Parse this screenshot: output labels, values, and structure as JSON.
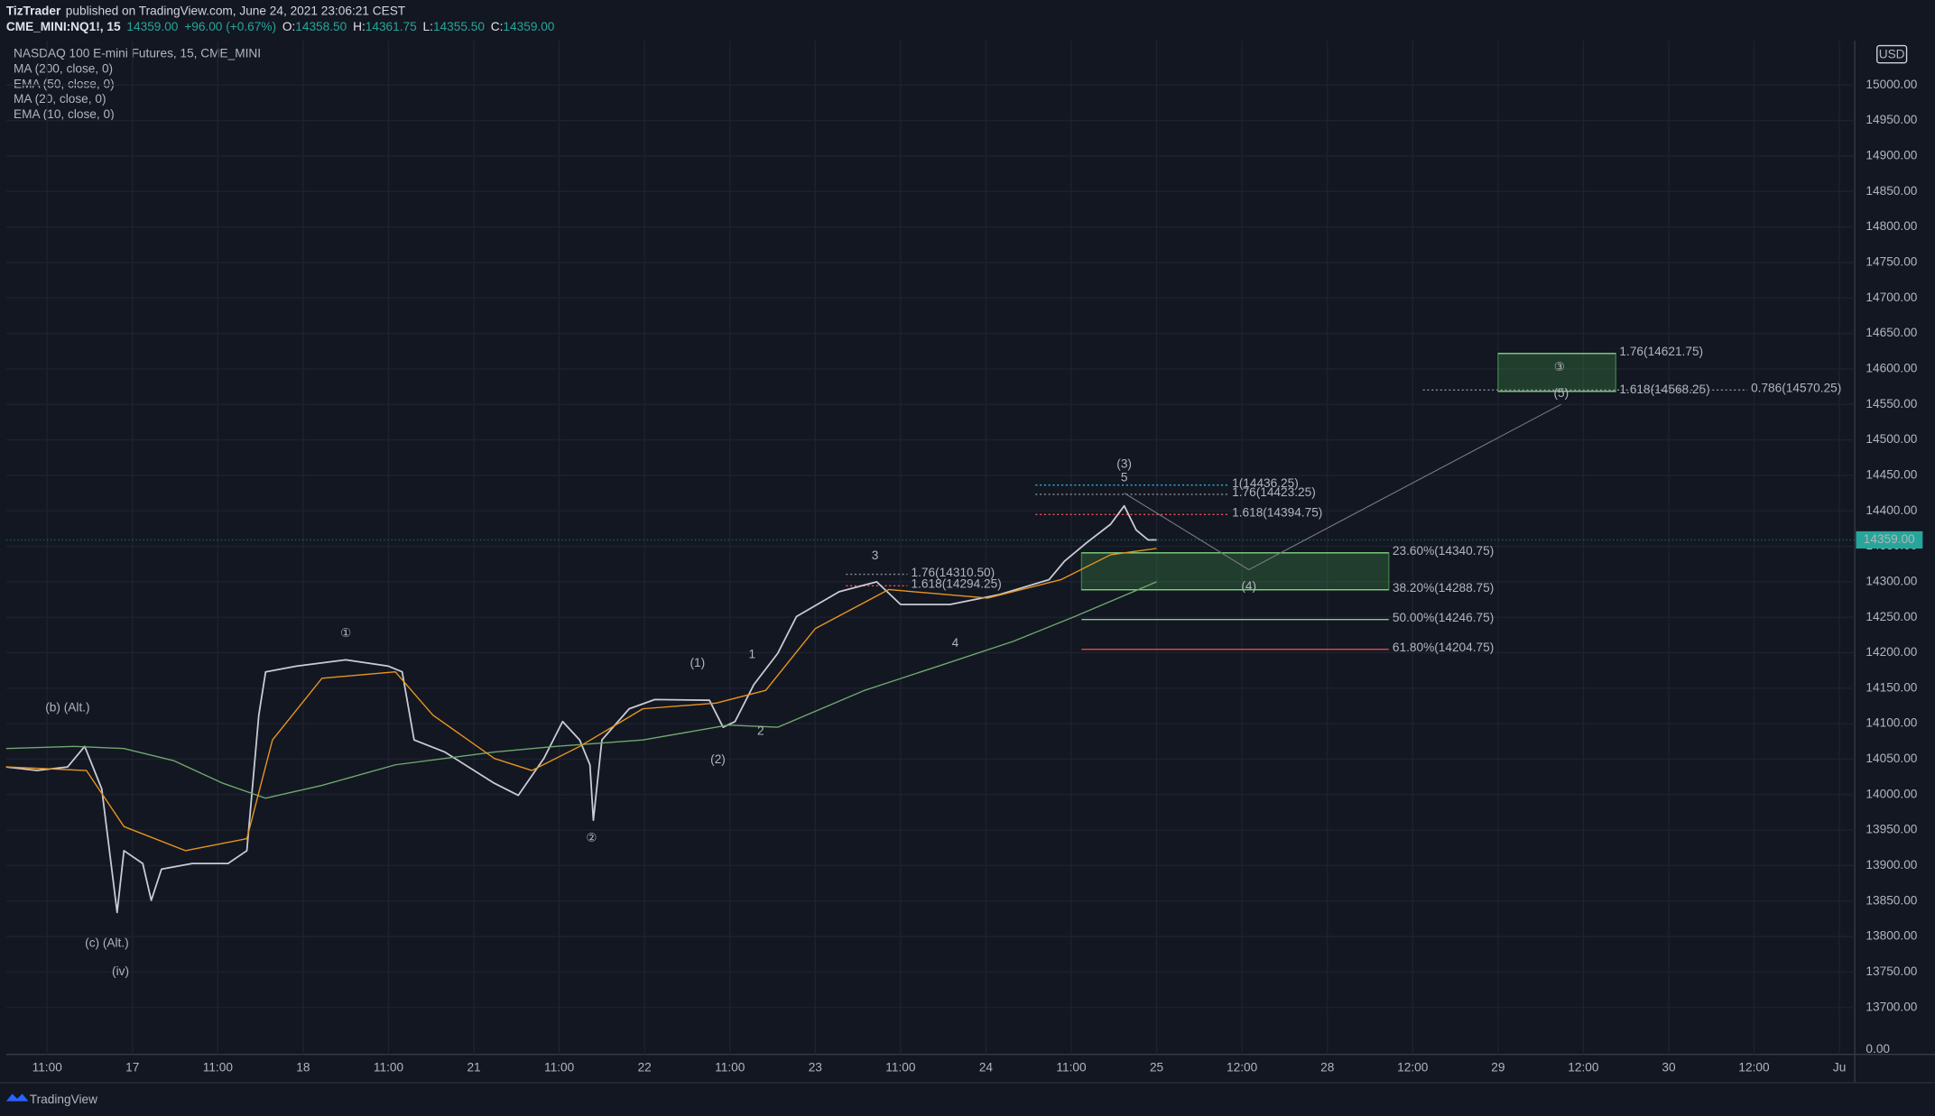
{
  "header": {
    "author": "TizTrader",
    "published": "published on TradingView.com, June 24, 2021 23:06:21 CEST",
    "symbol": "CME_MINI:NQ1!, 15",
    "price": "14359.00",
    "change": "+96.00 (+0.67%)",
    "ohlc": [
      {
        "key": "O:",
        "value": "14358.50"
      },
      {
        "key": "H:",
        "value": "14361.75"
      },
      {
        "key": "L:",
        "value": "14355.50"
      },
      {
        "key": "C:",
        "value": "14359.00"
      }
    ]
  },
  "footer": {
    "brand": "TradingView"
  },
  "chart_data": {
    "type": "line",
    "currency": "USD",
    "price_scale_bottom_label": "0.00",
    "other_indicators": [
      "MA (20, close, 0)",
      "EMA (10, close, 0)"
    ],
    "xlim": [
      0.26,
      11.09
    ],
    "ylim": [
      13634,
      15062.5
    ],
    "grid": true,
    "xticks": [
      {
        "value": 0.5,
        "label": "11:00"
      },
      {
        "value": 1,
        "label": "17"
      },
      {
        "value": 1.5,
        "label": "11:00"
      },
      {
        "value": 2,
        "label": "18"
      },
      {
        "value": 2.5,
        "label": "11:00"
      },
      {
        "value": 3,
        "label": "21"
      },
      {
        "value": 3.5,
        "label": "11:00"
      },
      {
        "value": 4,
        "label": "22"
      },
      {
        "value": 4.5,
        "label": "11:00"
      },
      {
        "value": 5,
        "label": "23"
      },
      {
        "value": 5.5,
        "label": "11:00"
      },
      {
        "value": 6,
        "label": "24"
      },
      {
        "value": 6.5,
        "label": "11:00"
      },
      {
        "value": 7,
        "label": "25"
      },
      {
        "value": 7.5,
        "label": "12:00"
      },
      {
        "value": 8,
        "label": "28"
      },
      {
        "value": 8.5,
        "label": "12:00"
      },
      {
        "value": 9,
        "label": "29"
      },
      {
        "value": 9.5,
        "label": "12:00"
      },
      {
        "value": 10,
        "label": "30"
      },
      {
        "value": 10.5,
        "label": "12:00"
      },
      {
        "value": 11,
        "label": "Ju"
      }
    ],
    "yticks": [
      {
        "value": 13700,
        "label": "13700.00"
      },
      {
        "value": 13750,
        "label": "13750.00"
      },
      {
        "value": 13800,
        "label": "13800.00"
      },
      {
        "value": 13850,
        "label": "13850.00"
      },
      {
        "value": 13900,
        "label": "13900.00"
      },
      {
        "value": 13950,
        "label": "13950.00"
      },
      {
        "value": 14000,
        "label": "14000.00"
      },
      {
        "value": 14050,
        "label": "14050.00"
      },
      {
        "value": 14100,
        "label": "14100.00"
      },
      {
        "value": 14150,
        "label": "14150.00"
      },
      {
        "value": 14200,
        "label": "14200.00"
      },
      {
        "value": 14250,
        "label": "14250.00"
      },
      {
        "value": 14300,
        "label": "14300.00"
      },
      {
        "value": 14350,
        "label": "14350.00"
      },
      {
        "value": 14400,
        "label": "14400.00"
      },
      {
        "value": 14450,
        "label": "14450.00"
      },
      {
        "value": 14500,
        "label": "14500.00"
      },
      {
        "value": 14550,
        "label": "14550.00"
      },
      {
        "value": 14600,
        "label": "14600.00"
      },
      {
        "value": 14650,
        "label": "14650.00"
      },
      {
        "value": 14700,
        "label": "14700.00"
      },
      {
        "value": 14750,
        "label": "14750.00"
      },
      {
        "value": 14800,
        "label": "14800.00"
      },
      {
        "value": 14850,
        "label": "14850.00"
      },
      {
        "value": 14900,
        "label": "14900.00"
      },
      {
        "value": 14950,
        "label": "14950.00"
      },
      {
        "value": 15000,
        "label": "15000.00"
      }
    ],
    "series": [
      {
        "name": "NASDAQ 100 E-mini Futures, 15, CME_MINI",
        "color": "#c9ccd4",
        "x": [
          0.26,
          0.44,
          0.62,
          0.72,
          0.82,
          0.91,
          0.95,
          1.06,
          1.11,
          1.17,
          1.35,
          1.56,
          1.67,
          1.74,
          1.78,
          1.96,
          2.25,
          2.5,
          2.58,
          2.65,
          2.83,
          3.12,
          3.26,
          3.41,
          3.52,
          3.62,
          3.68,
          3.7,
          3.75,
          3.91,
          4.06,
          4.38,
          4.46,
          4.53,
          4.64,
          4.78,
          4.89,
          5.14,
          5.36,
          5.5,
          5.79,
          6.08,
          6.37,
          6.46,
          6.59,
          6.73,
          6.81,
          6.88,
          6.95,
          7.0
        ],
        "values": [
          14039,
          14034,
          14039,
          14068,
          14008,
          13834,
          13921,
          13903,
          13851,
          13895,
          13903,
          13903,
          13921,
          14112,
          14173,
          14181,
          14190,
          14181,
          14173,
          14077,
          14060,
          14016,
          13999,
          14051,
          14103,
          14077,
          14042,
          13964,
          14077,
          14121,
          14134,
          14133,
          14095,
          14103,
          14155,
          14199,
          14251,
          14286,
          14300,
          14268,
          14268,
          14282,
          14303,
          14329,
          14355,
          14381,
          14407,
          14373,
          14359,
          14359
        ]
      },
      {
        "name": "MA (200, close, 0)",
        "color": "#6fa86f",
        "x": [
          0.26,
          0.66,
          0.95,
          1.24,
          1.53,
          1.78,
          2.11,
          2.54,
          3.12,
          3.48,
          3.99,
          4.49,
          4.78,
          5.29,
          5.72,
          6.16,
          6.52,
          7.0
        ],
        "values": [
          14065,
          14068,
          14065,
          14048,
          14016,
          13995,
          14013,
          14042,
          14060,
          14068,
          14077,
          14098,
          14095,
          14147,
          14181,
          14216,
          14251,
          14300
        ]
      },
      {
        "name": "EMA (50, close, 0)",
        "color": "#e8961e",
        "x": [
          0.26,
          0.73,
          0.95,
          1.31,
          1.67,
          1.82,
          2.11,
          2.54,
          2.76,
          3.12,
          3.34,
          3.62,
          3.99,
          4.42,
          4.71,
          5.0,
          5.43,
          6.01,
          6.44,
          6.73,
          7.0
        ],
        "values": [
          14039,
          14034,
          13955,
          13921,
          13938,
          14077,
          14164,
          14173,
          14112,
          14051,
          14034,
          14068,
          14121,
          14129,
          14147,
          14234,
          14289,
          14277,
          14303,
          14338,
          14347
        ]
      }
    ],
    "last_price": {
      "value": 14359,
      "label": "14359.00",
      "color": "#26a69a"
    },
    "projection": {
      "x": [
        6.81,
        7.54,
        9.37
      ],
      "y": [
        14425,
        14317,
        14550
      ],
      "color": "#787b86"
    },
    "zones": [
      {
        "x0": 6.56,
        "x1": 8.36,
        "y0": 14288.75,
        "y1": 14340.75,
        "color": "#4caf50"
      },
      {
        "x0": 9.0,
        "x1": 9.69,
        "y0": 14568.25,
        "y1": 14621.75,
        "color": "#4caf50"
      }
    ],
    "levels": [
      {
        "label": "23.60%(14340.75)",
        "value": 14340.75,
        "x0": 6.56,
        "x1": 8.36,
        "color": "#7fd17f",
        "dash": false
      },
      {
        "label": "38.20%(14288.75)",
        "value": 14288.75,
        "x0": 6.56,
        "x1": 8.36,
        "color": "#7fd17f",
        "dash": false
      },
      {
        "label": "50.00%(14246.75)",
        "value": 14246.75,
        "x0": 6.56,
        "x1": 8.36,
        "color": "#7fd17f",
        "dash": false
      },
      {
        "label": "61.80%(14204.75)",
        "value": 14204.75,
        "x0": 6.56,
        "x1": 8.36,
        "color": "#f0514f",
        "dash": false
      },
      {
        "label": "1(14436.25)",
        "value": 14436.25,
        "x0": 6.29,
        "x1": 7.42,
        "color": "#29b6d8",
        "dash": true
      },
      {
        "label": "1.76(14423.25)",
        "value": 14423.25,
        "x0": 6.29,
        "x1": 7.42,
        "color": "#8a8d96",
        "dash": true
      },
      {
        "label": "1.618(14394.75)",
        "value": 14394.75,
        "x0": 6.29,
        "x1": 7.42,
        "color": "#f0514f",
        "dash": true
      },
      {
        "label": "1.76(14310.50)",
        "value": 14310.5,
        "x0": 5.18,
        "x1": 5.54,
        "color": "#8a8d96",
        "dash": true
      },
      {
        "label": "1.618(14294.25)",
        "value": 14294.25,
        "x0": 5.18,
        "x1": 5.54,
        "color": "#f0514f",
        "dash": true
      },
      {
        "label": "1.76(14621.75)",
        "value": 14621.75,
        "x0": 9.0,
        "x1": 9.69,
        "color": "#7fd17f",
        "dash": false
      },
      {
        "label": "1.618(14568.25)",
        "value": 14568.25,
        "x0": 9.0,
        "x1": 9.69,
        "color": "#7fd17f",
        "dash": false
      },
      {
        "label": "0.786(14570.25)",
        "value": 14570.25,
        "x0": 8.56,
        "x1": 10.46,
        "color": "#8a8d96",
        "dash": true
      }
    ],
    "annotations": [
      {
        "text": "①",
        "x": 2.25,
        "y": 14227,
        "color": "#e6e6e6"
      },
      {
        "text": "②",
        "x": 3.69,
        "y": 13938,
        "color": "#e6e6e6"
      },
      {
        "text": "③",
        "x": 9.36,
        "y": 14602,
        "color": "#e6e6e6"
      },
      {
        "text": "(b) (Alt.)",
        "x": 0.62,
        "y": 14122,
        "color": "#e0524f"
      },
      {
        "text": "(c) (Alt.)",
        "x": 0.85,
        "y": 13790,
        "color": "#e0524f"
      },
      {
        "text": "(iv)",
        "x": 0.93,
        "y": 13750,
        "color": "#2c8cf0"
      },
      {
        "text": "(1)",
        "x": 4.31,
        "y": 14185,
        "color": "#f5a623"
      },
      {
        "text": "(2)",
        "x": 4.43,
        "y": 14049,
        "color": "#f5a623"
      },
      {
        "text": "(3)",
        "x": 6.81,
        "y": 14465,
        "color": "#f5a623"
      },
      {
        "text": "(4)",
        "x": 7.54,
        "y": 14293,
        "color": "#f5a623"
      },
      {
        "text": "(5)",
        "x": 9.37,
        "y": 14565,
        "color": "#f5a623"
      },
      {
        "text": "1",
        "x": 4.63,
        "y": 14197,
        "color": "#e0524f"
      },
      {
        "text": "2",
        "x": 4.68,
        "y": 14089,
        "color": "#e0524f"
      },
      {
        "text": "3",
        "x": 5.35,
        "y": 14336,
        "color": "#e0524f"
      },
      {
        "text": "4",
        "x": 5.82,
        "y": 14213,
        "color": "#e0524f"
      },
      {
        "text": "5",
        "x": 6.81,
        "y": 14446,
        "color": "#e0524f"
      }
    ]
  }
}
